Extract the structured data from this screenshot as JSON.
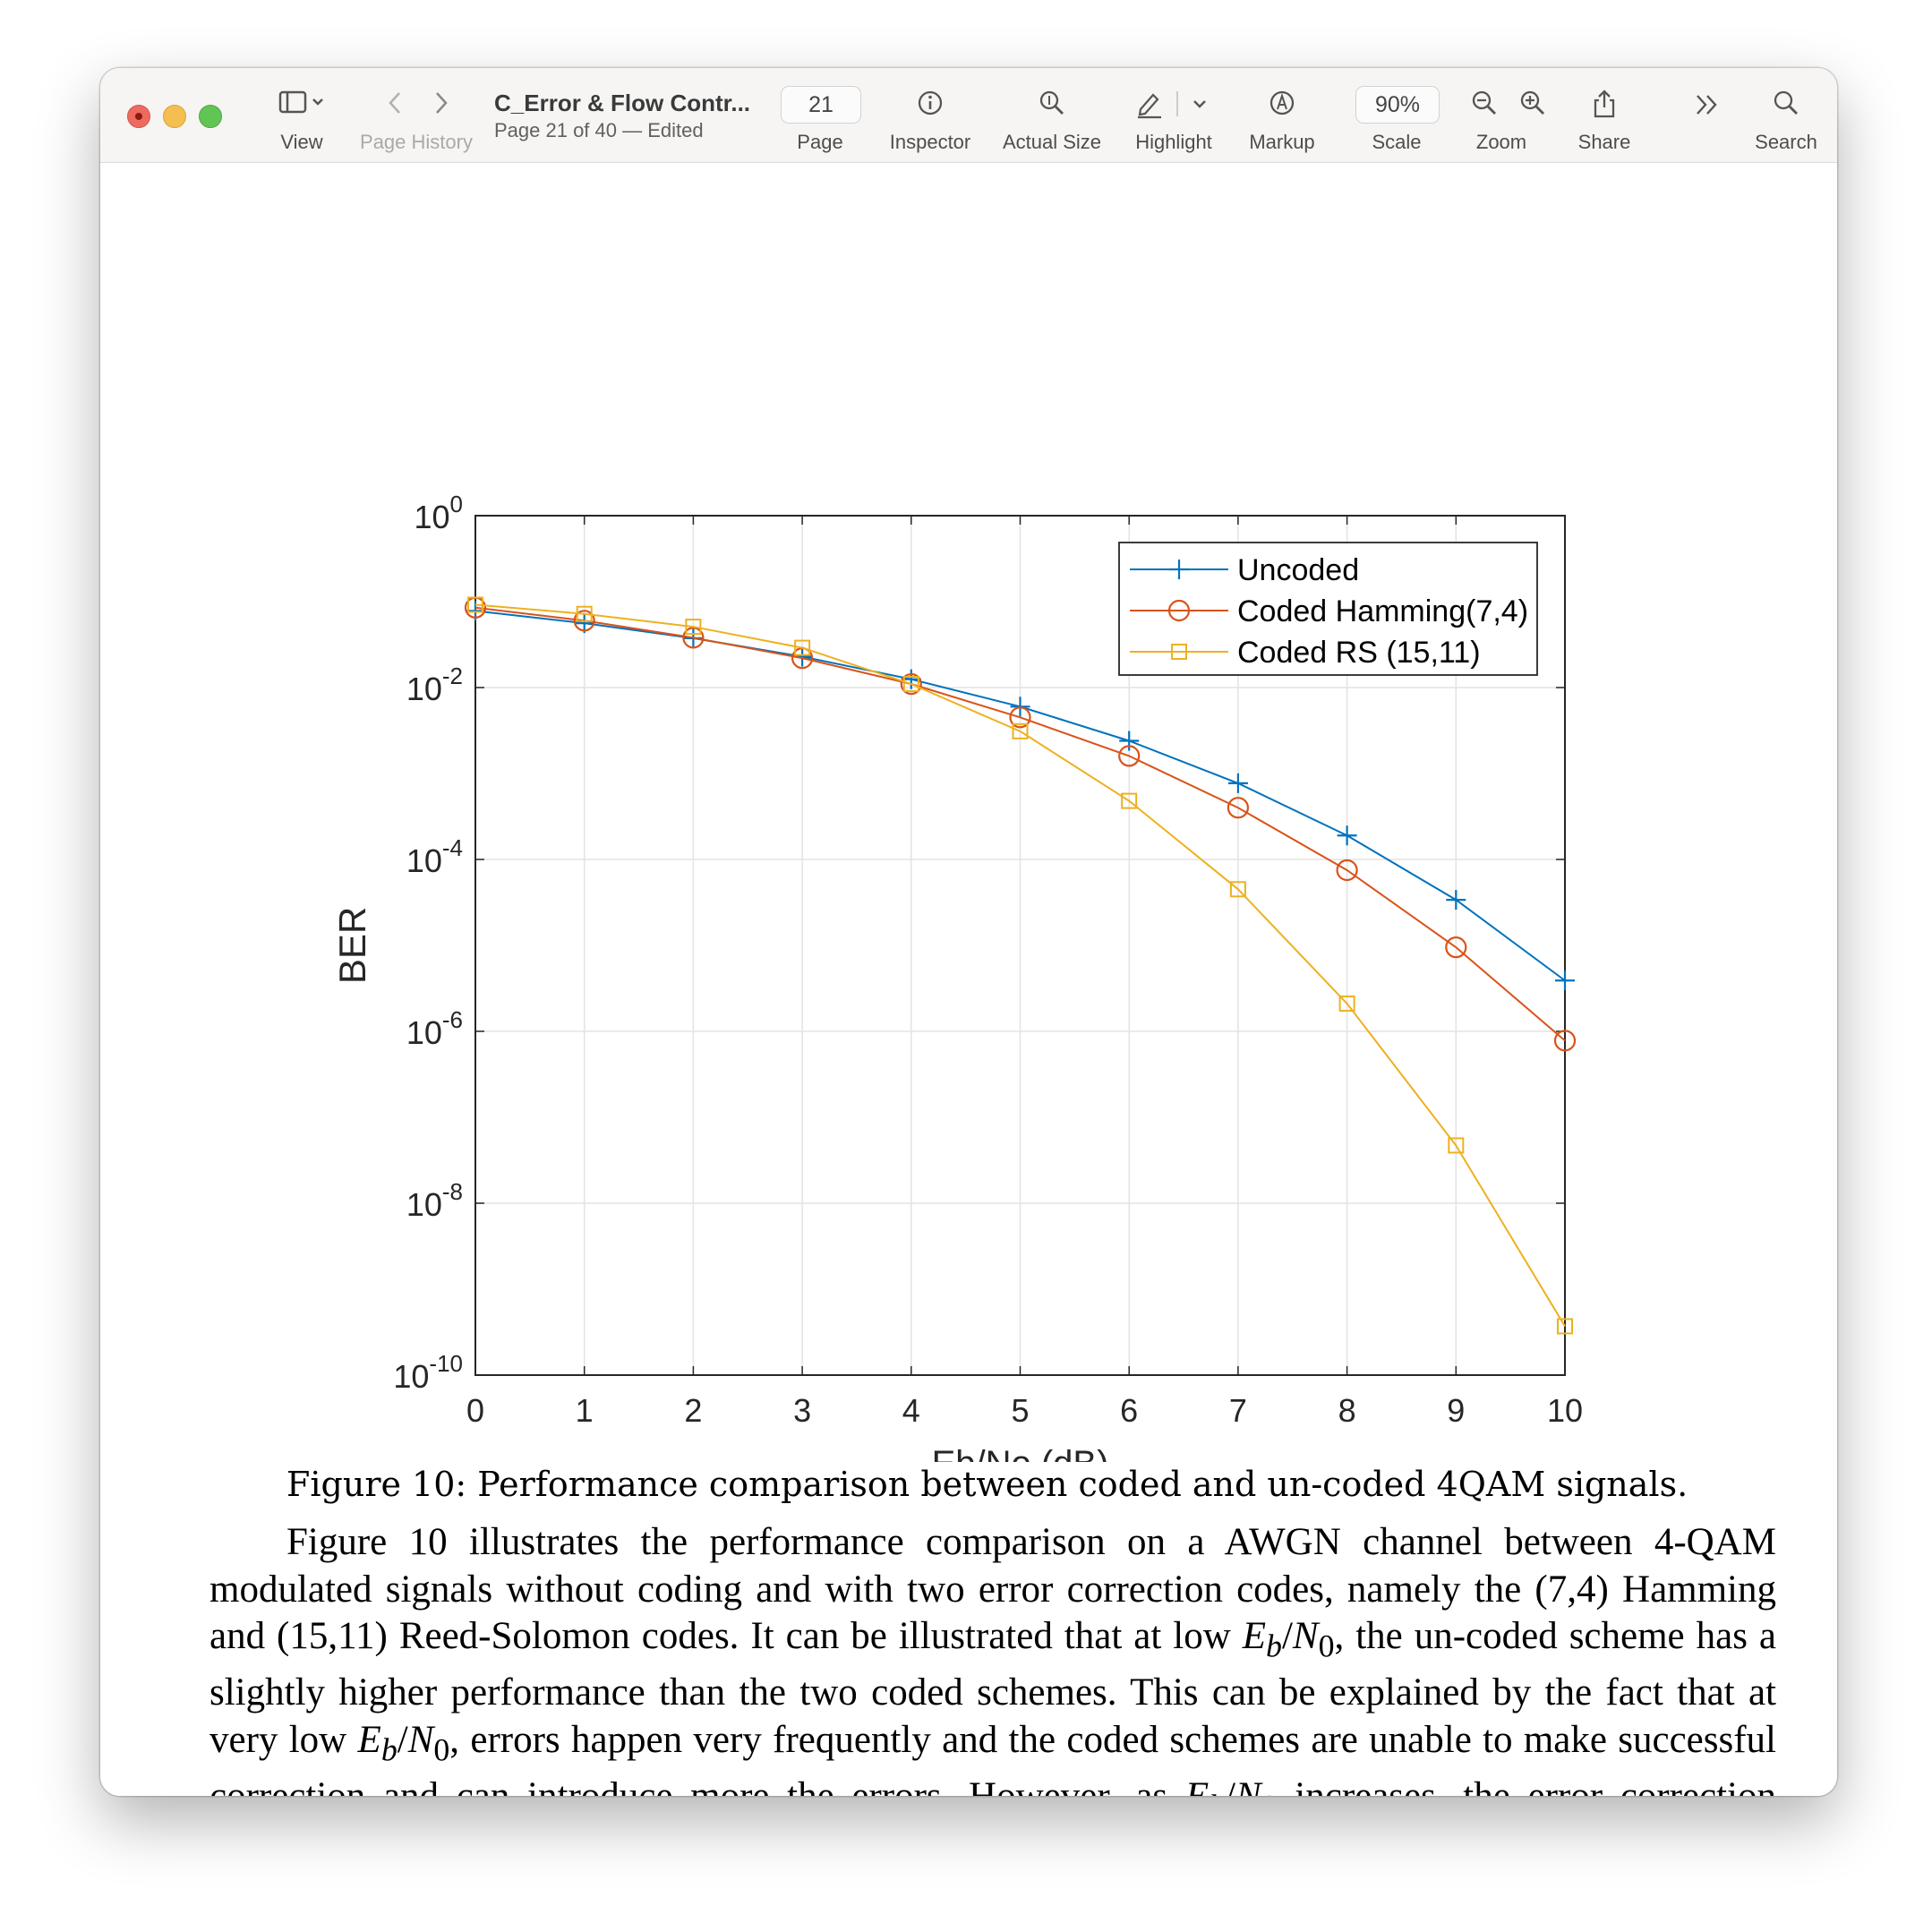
{
  "toolbar": {
    "view_label": "View",
    "page_history_label": "Page History",
    "doc_title": "C_Error & Flow Contr...",
    "doc_subtitle": "Page 21 of 40 — Edited",
    "page_value": "21",
    "page_label": "Page",
    "inspector_label": "Inspector",
    "actual_size_label": "Actual Size",
    "highlight_label": "Highlight",
    "markup_label": "Markup",
    "scale_value": "90%",
    "scale_label": "Scale",
    "zoom_label": "Zoom",
    "share_label": "Share",
    "search_label": "Search",
    "icons": {
      "view": "sidebar-icon",
      "back": "chevron-left-icon",
      "forward": "chevron-right-icon",
      "inspector": "info-icon",
      "actual_size": "magnifier-icon",
      "highlight": "pen-icon",
      "markup": "markup-pen-icon",
      "zoom_out": "zoom-out-icon",
      "zoom_in": "zoom-in-icon",
      "share": "share-icon",
      "more": "double-chevron-icon",
      "search": "search-icon"
    }
  },
  "colors": {
    "close": "#ed6a5e",
    "minimize": "#f5bf4f",
    "zoom": "#61c554",
    "series_uncoded": "#0072BD",
    "series_hamming": "#D95319",
    "series_rs": "#EDB120"
  },
  "chart_data": {
    "type": "line",
    "y_scale": "log",
    "xlabel": "Eb/No (dB)",
    "ylabel": "BER",
    "xlim": [
      0,
      10
    ],
    "ylim": [
      1e-10,
      1
    ],
    "x_ticks": [
      "0",
      "1",
      "2",
      "3",
      "4",
      "5",
      "6",
      "7",
      "8",
      "9",
      "10"
    ],
    "y_ticks": [
      {
        "value": 1,
        "base": "10",
        "exp": "0"
      },
      {
        "value": 0.01,
        "base": "10",
        "exp": "-2"
      },
      {
        "value": 0.0001,
        "base": "10",
        "exp": "-4"
      },
      {
        "value": 1e-06,
        "base": "10",
        "exp": "-6"
      },
      {
        "value": 1e-08,
        "base": "10",
        "exp": "-8"
      },
      {
        "value": 1e-10,
        "base": "10",
        "exp": "-10"
      }
    ],
    "grid": true,
    "legend_position": "top-right",
    "x": [
      0,
      1,
      2,
      3,
      4,
      5,
      6,
      7,
      8,
      9,
      10
    ],
    "series": [
      {
        "name": "Uncoded",
        "marker": "plus",
        "color": "#0072BD",
        "values": [
          0.078,
          0.056,
          0.0375,
          0.0229,
          0.0125,
          0.006,
          0.0024,
          0.00077,
          0.00019,
          3.39e-05,
          3.9e-06
        ]
      },
      {
        "name": "Coded Hamming(7,4)",
        "marker": "circle",
        "color": "#D95319",
        "values": [
          0.085,
          0.06,
          0.038,
          0.022,
          0.011,
          0.0045,
          0.0016,
          0.0004,
          7.5e-05,
          9.5e-06,
          7.8e-07
        ]
      },
      {
        "name": "Coded RS (15,11)",
        "marker": "square",
        "color": "#EDB120",
        "values": [
          0.092,
          0.072,
          0.051,
          0.029,
          0.011,
          0.0031,
          0.00048,
          4.5e-05,
          2.1e-06,
          4.7e-08,
          3.7e-10
        ]
      }
    ]
  },
  "caption": "Figure 10: Performance comparison between coded and un-coded 4QAM signals.",
  "paragraph": {
    "t1": "Figure 10 illustrates the performance comparison on a AWGN channel between 4-QAM modulated signals without coding and with two error correction codes, namely the (7,4) Hamming and (15,11) Reed-Solomon codes. It can be illustrated that at low ",
    "t2": ", the un-coded scheme has a slightly higher performance than the two coded schemes. This can be explained by the fact that at very low ",
    "t3": ", errors happen very frequently and the coded schemes are unable to make successful correction and can introduce more the errors. However, as ",
    "t4": " increases, the error correction ability of coded schemes quickly reveals",
    "math_E": "E",
    "math_b": "b",
    "math_slash": "/",
    "math_N": "N",
    "math_0": "0"
  }
}
